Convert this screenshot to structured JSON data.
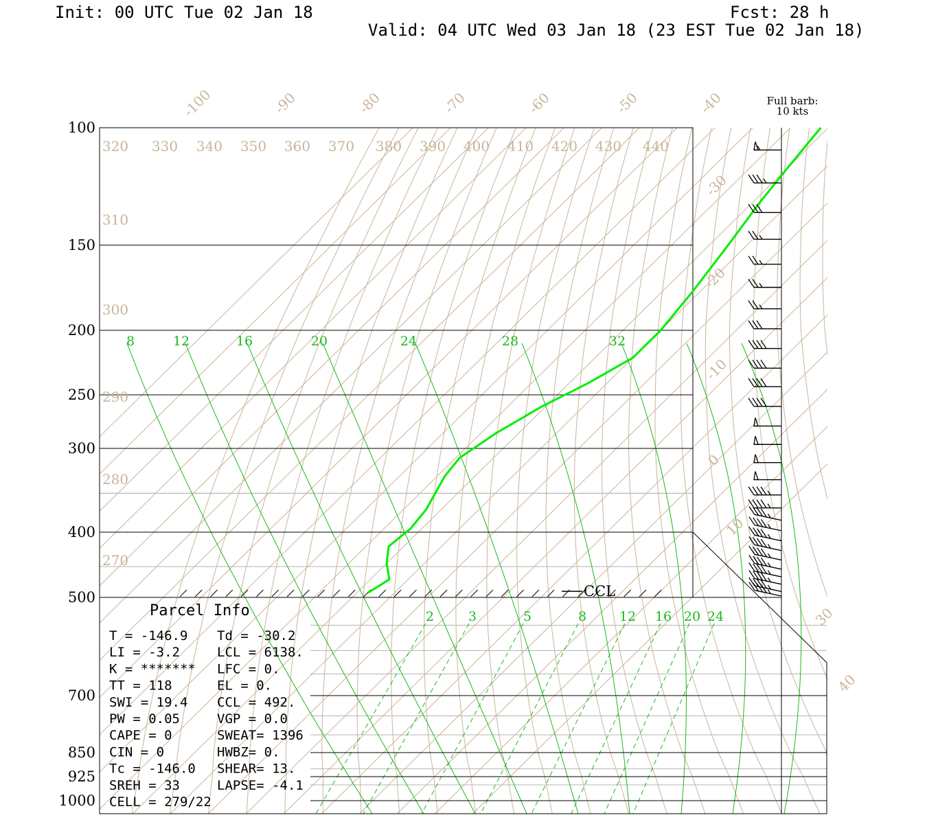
{
  "header": {
    "init": "Init: 00 UTC Tue 02 Jan 18",
    "fcst": "Fcst:   28 h",
    "valid": "Valid: 04 UTC Wed 03 Jan 18 (23 EST Tue 02 Jan 18)"
  },
  "barb_legend": {
    "line1": "Full barb:",
    "line2": "10 kts"
  },
  "colors": {
    "tan": "#c9b498",
    "green": "#1ab81a",
    "sounding": "#00ee00",
    "black": "#000000",
    "grid_gray": "#b4b4b4"
  },
  "chart_data": {
    "type": "line",
    "diagram": "skew-T log-p",
    "pressure_levels": [
      {
        "p": 100,
        "label": "100"
      },
      {
        "p": 150,
        "label": "150"
      },
      {
        "p": 200,
        "label": "200"
      },
      {
        "p": 250,
        "label": "250"
      },
      {
        "p": 300,
        "label": "300"
      },
      {
        "p": 400,
        "label": "400"
      },
      {
        "p": 500,
        "label": "500"
      },
      {
        "p": 700,
        "label": "700"
      },
      {
        "p": 850,
        "label": "850"
      },
      {
        "p": 925,
        "label": "925"
      },
      {
        "p": 1000,
        "label": "1000"
      }
    ],
    "temperature_labels": [
      "-100",
      "-90",
      "-80",
      "-70",
      "-60",
      "-50",
      "-40",
      "-30",
      "-20",
      "-10",
      "0",
      "10",
      "30",
      "40"
    ],
    "dry_adiabat_labels": [
      "320",
      "330",
      "340",
      "350",
      "360",
      "370",
      "380",
      "390",
      "400",
      "410",
      "420",
      "430",
      "440",
      "310",
      "300",
      "290",
      "280",
      "270"
    ],
    "moist_adiabat_labels": [
      "8",
      "12",
      "16",
      "20",
      "24",
      "28",
      "32"
    ],
    "mixing_ratio_labels": [
      "2",
      "3",
      "5",
      "8",
      "12",
      "16",
      "20",
      "24"
    ],
    "sounding_temperature": [
      {
        "p": 100,
        "t": -32
      },
      {
        "p": 115,
        "t": -30
      },
      {
        "p": 130,
        "t": -28
      },
      {
        "p": 150,
        "t": -25
      },
      {
        "p": 175,
        "t": -22
      },
      {
        "p": 200,
        "t": -20
      },
      {
        "p": 220,
        "t": -20
      },
      {
        "p": 240,
        "t": -25
      },
      {
        "p": 260,
        "t": -31
      },
      {
        "p": 285,
        "t": -36
      },
      {
        "p": 310,
        "t": -39
      },
      {
        "p": 330,
        "t": -38
      },
      {
        "p": 370,
        "t": -34
      },
      {
        "p": 395,
        "t": -33
      },
      {
        "p": 420,
        "t": -34
      },
      {
        "p": 445,
        "t": -30
      },
      {
        "p": 470,
        "t": -25
      },
      {
        "p": 492,
        "t": -27
      }
    ],
    "ccl_label": "CCL",
    "ccl_pressure": 492,
    "wind_barbs": [
      {
        "p": 108,
        "speed": 55
      },
      {
        "p": 121,
        "speed": 35
      },
      {
        "p": 134,
        "speed": 30
      },
      {
        "p": 147,
        "speed": 25
      },
      {
        "p": 160,
        "speed": 25
      },
      {
        "p": 173,
        "speed": 25
      },
      {
        "p": 186,
        "speed": 25
      },
      {
        "p": 199,
        "speed": 30
      },
      {
        "p": 213,
        "speed": 40
      },
      {
        "p": 228,
        "speed": 40
      },
      {
        "p": 243,
        "speed": 40
      },
      {
        "p": 260,
        "speed": 40
      },
      {
        "p": 278,
        "speed": 50
      },
      {
        "p": 296,
        "speed": 50
      },
      {
        "p": 315,
        "speed": 50
      },
      {
        "p": 334,
        "speed": 50
      },
      {
        "p": 352,
        "speed": 45
      },
      {
        "p": 368,
        "speed": 45
      },
      {
        "p": 384,
        "speed": 45
      },
      {
        "p": 398,
        "speed": 45
      },
      {
        "p": 412,
        "speed": 45
      },
      {
        "p": 426,
        "speed": 45
      },
      {
        "p": 440,
        "speed": 45
      },
      {
        "p": 454,
        "speed": 45
      },
      {
        "p": 466,
        "speed": 45
      },
      {
        "p": 478,
        "speed": 45
      },
      {
        "p": 490,
        "speed": 45
      },
      {
        "p": 499,
        "speed": 45
      }
    ]
  },
  "parcel_info": {
    "title": "Parcel Info",
    "rows": [
      [
        "T  =  -146.9",
        "Td = -30.2"
      ],
      [
        "LI =    -3.2",
        "LCL = 6138."
      ],
      [
        "K  = *******",
        "LFC =    0."
      ],
      [
        "TT =     118",
        "EL  =    0."
      ],
      [
        "SWI =   19.4",
        "CCL =  492."
      ],
      [
        "PW =    0.05",
        "VGP =   0.0"
      ],
      [
        "CAPE =     0",
        "SWEAT= 1396"
      ],
      [
        "CIN =      0",
        "HWBZ=    0."
      ],
      [
        "Tc =  -146.0",
        "SHEAR=  13."
      ],
      [
        "SREH =    33",
        "LAPSE= -4.1"
      ],
      [
        "CELL = 279/22",
        ""
      ]
    ]
  }
}
